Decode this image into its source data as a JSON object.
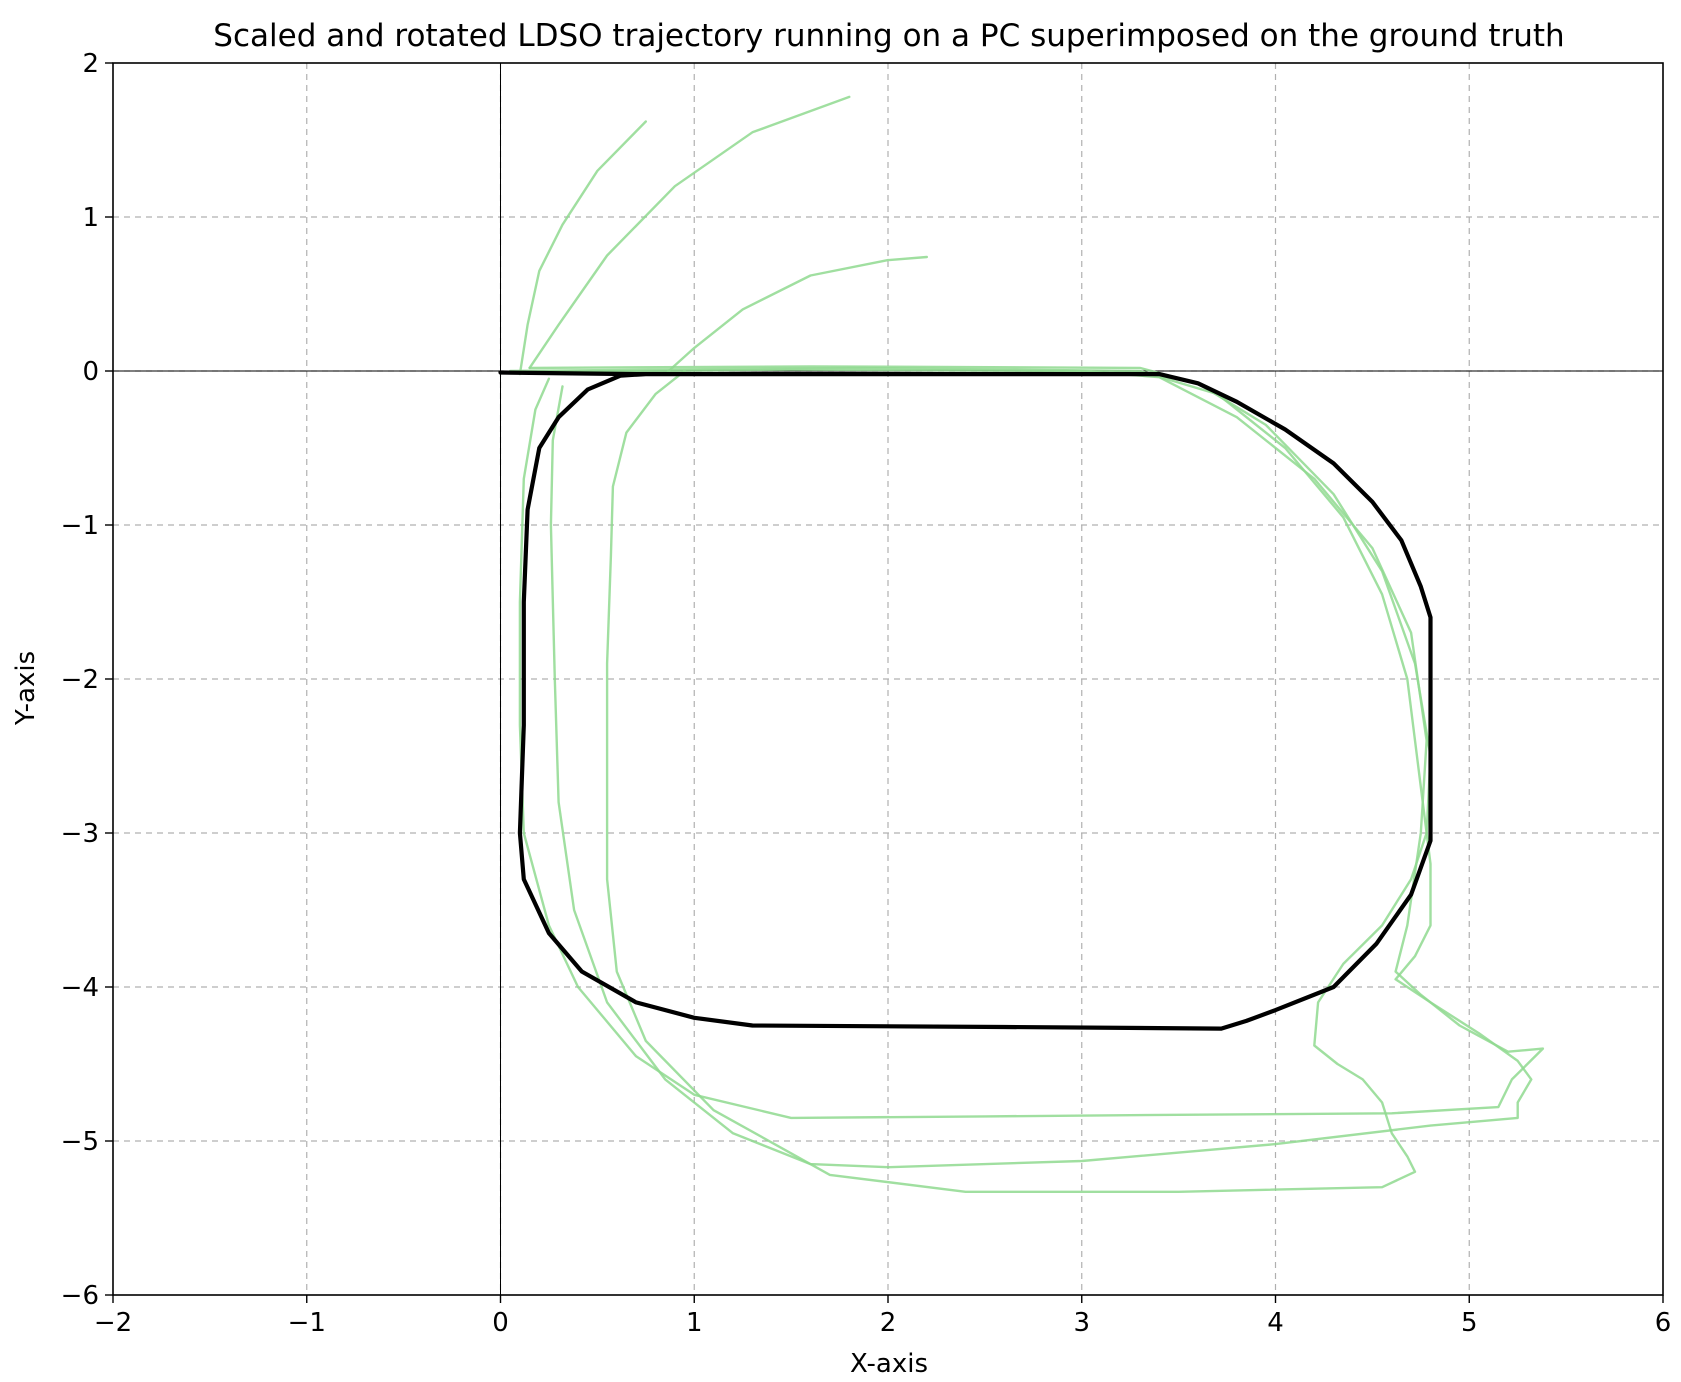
{
  "chart_data": {
    "type": "line",
    "title": "Scaled and rotated LDSO trajectory running on a PC superimposed on the ground truth",
    "xlabel": "X-axis",
    "ylabel": "Y-axis",
    "xlim": [
      -2,
      6
    ],
    "ylim": [
      -6,
      2
    ],
    "x_ticks": [
      -2,
      -1,
      0,
      1,
      2,
      3,
      4,
      5,
      6
    ],
    "y_ticks": [
      -6,
      -5,
      -4,
      -3,
      -2,
      -1,
      0,
      1,
      2
    ],
    "grid": true,
    "zero_lines": true,
    "legend": "none",
    "series": [
      {
        "color": "#000000",
        "points": [
          [
            0,
            -0.01
          ],
          [
            0.7,
            -0.02
          ],
          [
            3.4,
            -0.02
          ],
          [
            3.6,
            -0.08
          ],
          [
            3.8,
            -0.2
          ],
          [
            4.05,
            -0.38
          ],
          [
            4.3,
            -0.6
          ],
          [
            4.5,
            -0.85
          ],
          [
            4.65,
            -1.1
          ],
          [
            4.75,
            -1.4
          ],
          [
            4.8,
            -1.6
          ],
          [
            4.8,
            -2.2
          ],
          [
            4.8,
            -3.05
          ],
          [
            4.7,
            -3.4
          ],
          [
            4.52,
            -3.72
          ],
          [
            4.3,
            -4.0
          ],
          [
            4.0,
            -4.15
          ],
          [
            3.85,
            -4.22
          ],
          [
            3.72,
            -4.27
          ],
          [
            2.6,
            -4.26
          ],
          [
            1.3,
            -4.25
          ],
          [
            1.0,
            -4.2
          ],
          [
            0.7,
            -4.1
          ],
          [
            0.42,
            -3.9
          ],
          [
            0.25,
            -3.65
          ],
          [
            0.12,
            -3.3
          ],
          [
            0.1,
            -3.0
          ],
          [
            0.12,
            -2.3
          ],
          [
            0.12,
            -1.5
          ],
          [
            0.14,
            -0.9
          ],
          [
            0.2,
            -0.5
          ],
          [
            0.3,
            -0.3
          ],
          [
            0.45,
            -0.12
          ],
          [
            0.62,
            -0.03
          ],
          [
            0.75,
            -0.02
          ]
        ]
      },
      {
        "color": "#8fd98f",
        "points": [
          [
            0.1,
            -0.02
          ],
          [
            0.14,
            0.3
          ],
          [
            0.2,
            0.65
          ],
          [
            0.32,
            0.95
          ],
          [
            0.5,
            1.3
          ],
          [
            0.75,
            1.62
          ]
        ]
      },
      {
        "color": "#8fd98f",
        "points": [
          [
            0.1,
            -0.01
          ],
          [
            1.5,
            0.01
          ],
          [
            3.0,
            0.0
          ],
          [
            3.4,
            -0.04
          ],
          [
            3.8,
            -0.3
          ],
          [
            4.2,
            -0.7
          ],
          [
            4.5,
            -1.15
          ],
          [
            4.7,
            -1.7
          ],
          [
            4.78,
            -2.4
          ],
          [
            4.75,
            -3.0
          ],
          [
            4.68,
            -3.6
          ],
          [
            4.62,
            -3.9
          ],
          [
            4.75,
            -4.05
          ],
          [
            4.95,
            -4.25
          ],
          [
            5.2,
            -4.42
          ],
          [
            5.38,
            -4.4
          ],
          [
            5.22,
            -4.6
          ],
          [
            5.15,
            -4.78
          ],
          [
            4.6,
            -4.82
          ],
          [
            3.5,
            -4.83
          ],
          [
            2.5,
            -4.84
          ],
          [
            1.5,
            -4.85
          ],
          [
            1.0,
            -4.7
          ],
          [
            0.7,
            -4.45
          ],
          [
            0.4,
            -4.0
          ],
          [
            0.25,
            -3.6
          ],
          [
            0.12,
            -3.0
          ],
          [
            0.1,
            -2.3
          ],
          [
            0.1,
            -1.5
          ],
          [
            0.12,
            -0.7
          ],
          [
            0.18,
            -0.25
          ],
          [
            0.25,
            -0.05
          ]
        ]
      },
      {
        "color": "#8fd98f",
        "points": [
          [
            0.15,
            0.02
          ],
          [
            0.3,
            0.3
          ],
          [
            0.55,
            0.75
          ],
          [
            0.9,
            1.2
          ],
          [
            1.3,
            1.55
          ],
          [
            1.8,
            1.78
          ]
        ]
      },
      {
        "color": "#8fd98f",
        "points": [
          [
            0.05,
            0.0
          ],
          [
            1.8,
            0.02
          ],
          [
            3.3,
            0.0
          ],
          [
            3.7,
            -0.15
          ],
          [
            4.05,
            -0.5
          ],
          [
            4.35,
            -0.95
          ],
          [
            4.55,
            -1.45
          ],
          [
            4.68,
            -2.0
          ],
          [
            4.75,
            -2.7
          ],
          [
            4.8,
            -3.2
          ],
          [
            4.8,
            -3.6
          ],
          [
            4.72,
            -3.8
          ],
          [
            4.62,
            -3.95
          ],
          [
            4.8,
            -4.1
          ],
          [
            5.05,
            -4.3
          ],
          [
            5.25,
            -4.48
          ],
          [
            5.32,
            -4.6
          ],
          [
            5.25,
            -4.75
          ],
          [
            5.25,
            -4.85
          ],
          [
            4.8,
            -4.9
          ],
          [
            4.0,
            -5.02
          ],
          [
            3.0,
            -5.13
          ],
          [
            2.0,
            -5.17
          ],
          [
            1.6,
            -5.15
          ],
          [
            1.2,
            -4.95
          ],
          [
            0.85,
            -4.6
          ],
          [
            0.55,
            -4.1
          ],
          [
            0.38,
            -3.5
          ],
          [
            0.3,
            -2.8
          ],
          [
            0.28,
            -2.0
          ],
          [
            0.26,
            -1.0
          ],
          [
            0.27,
            -0.45
          ],
          [
            0.32,
            -0.1
          ]
        ]
      },
      {
        "color": "#8fd98f",
        "points": [
          [
            0.85,
            -0.02
          ],
          [
            1.0,
            0.15
          ],
          [
            1.25,
            0.4
          ],
          [
            1.6,
            0.62
          ],
          [
            2.0,
            0.72
          ],
          [
            2.2,
            0.74
          ]
        ]
      },
      {
        "color": "#8fd98f",
        "points": [
          [
            0.15,
            0.02
          ],
          [
            1.6,
            0.03
          ],
          [
            3.3,
            0.02
          ],
          [
            3.6,
            -0.08
          ],
          [
            3.95,
            -0.35
          ],
          [
            4.3,
            -0.8
          ],
          [
            4.55,
            -1.3
          ],
          [
            4.72,
            -1.9
          ],
          [
            4.8,
            -2.5
          ],
          [
            4.78,
            -3.0
          ],
          [
            4.7,
            -3.3
          ],
          [
            4.55,
            -3.6
          ],
          [
            4.35,
            -3.85
          ],
          [
            4.22,
            -4.1
          ],
          [
            4.2,
            -4.38
          ],
          [
            4.32,
            -4.5
          ],
          [
            4.45,
            -4.6
          ],
          [
            4.55,
            -4.75
          ],
          [
            4.6,
            -4.95
          ],
          [
            4.68,
            -5.1
          ],
          [
            4.72,
            -5.2
          ],
          [
            4.55,
            -5.3
          ],
          [
            3.5,
            -5.33
          ],
          [
            2.4,
            -5.33
          ],
          [
            1.7,
            -5.22
          ],
          [
            1.1,
            -4.8
          ],
          [
            0.75,
            -4.35
          ],
          [
            0.6,
            -3.9
          ],
          [
            0.55,
            -3.3
          ],
          [
            0.55,
            -2.6
          ],
          [
            0.55,
            -1.9
          ],
          [
            0.57,
            -1.2
          ],
          [
            0.58,
            -0.75
          ],
          [
            0.65,
            -0.4
          ],
          [
            0.8,
            -0.15
          ],
          [
            0.95,
            0.0
          ]
        ]
      }
    ]
  }
}
